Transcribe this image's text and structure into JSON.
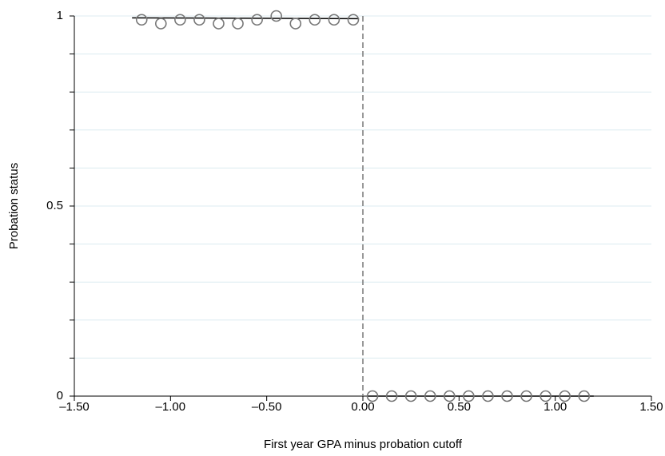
{
  "chart_data": {
    "type": "scatter",
    "xlabel": "First year GPA minus probation cutoff",
    "ylabel": "Probation status",
    "xlim": [
      -1.5,
      1.5
    ],
    "ylim": [
      0,
      1
    ],
    "xticks": [
      {
        "value": -1.5,
        "label": "–1.50"
      },
      {
        "value": -1.0,
        "label": "–1.00"
      },
      {
        "value": -0.5,
        "label": "–0.50"
      },
      {
        "value": 0,
        "label": "0.00"
      },
      {
        "value": 0.5,
        "label": "0.50"
      },
      {
        "value": 1.0,
        "label": "1.00"
      },
      {
        "value": 1.5,
        "label": "1.50"
      }
    ],
    "yticks": [
      0,
      0.5,
      1
    ],
    "yminor": [
      0.1,
      0.2,
      0.3,
      0.4,
      0.6,
      0.7,
      0.8,
      0.9
    ],
    "grid": true,
    "vline": 0,
    "series": [
      {
        "color": "#777777",
        "x": [
          -1.15,
          -1.05,
          -0.95,
          -0.85,
          -0.75,
          -0.65,
          -0.55,
          -0.45,
          -0.35,
          -0.25,
          -0.15,
          -0.05
        ],
        "values": [
          0.99,
          0.98,
          0.99,
          0.99,
          0.98,
          0.98,
          0.99,
          1.0,
          0.98,
          0.99,
          0.99,
          0.99
        ]
      },
      {
        "color": "#777777",
        "x": [
          0.05,
          0.15,
          0.25,
          0.35,
          0.45,
          0.55,
          0.65,
          0.75,
          0.85,
          0.95,
          1.05,
          1.15
        ],
        "values": [
          0,
          0,
          0,
          0,
          0,
          0,
          0,
          0,
          0,
          0,
          0,
          0
        ]
      }
    ],
    "fit_lines": [
      {
        "color": "#000000",
        "x": [
          -1.2,
          -0.02
        ],
        "values": [
          0.995,
          0.993
        ]
      },
      {
        "color": "#000000",
        "x": [
          0.02,
          1.2
        ],
        "values": [
          0,
          0
        ]
      }
    ]
  }
}
